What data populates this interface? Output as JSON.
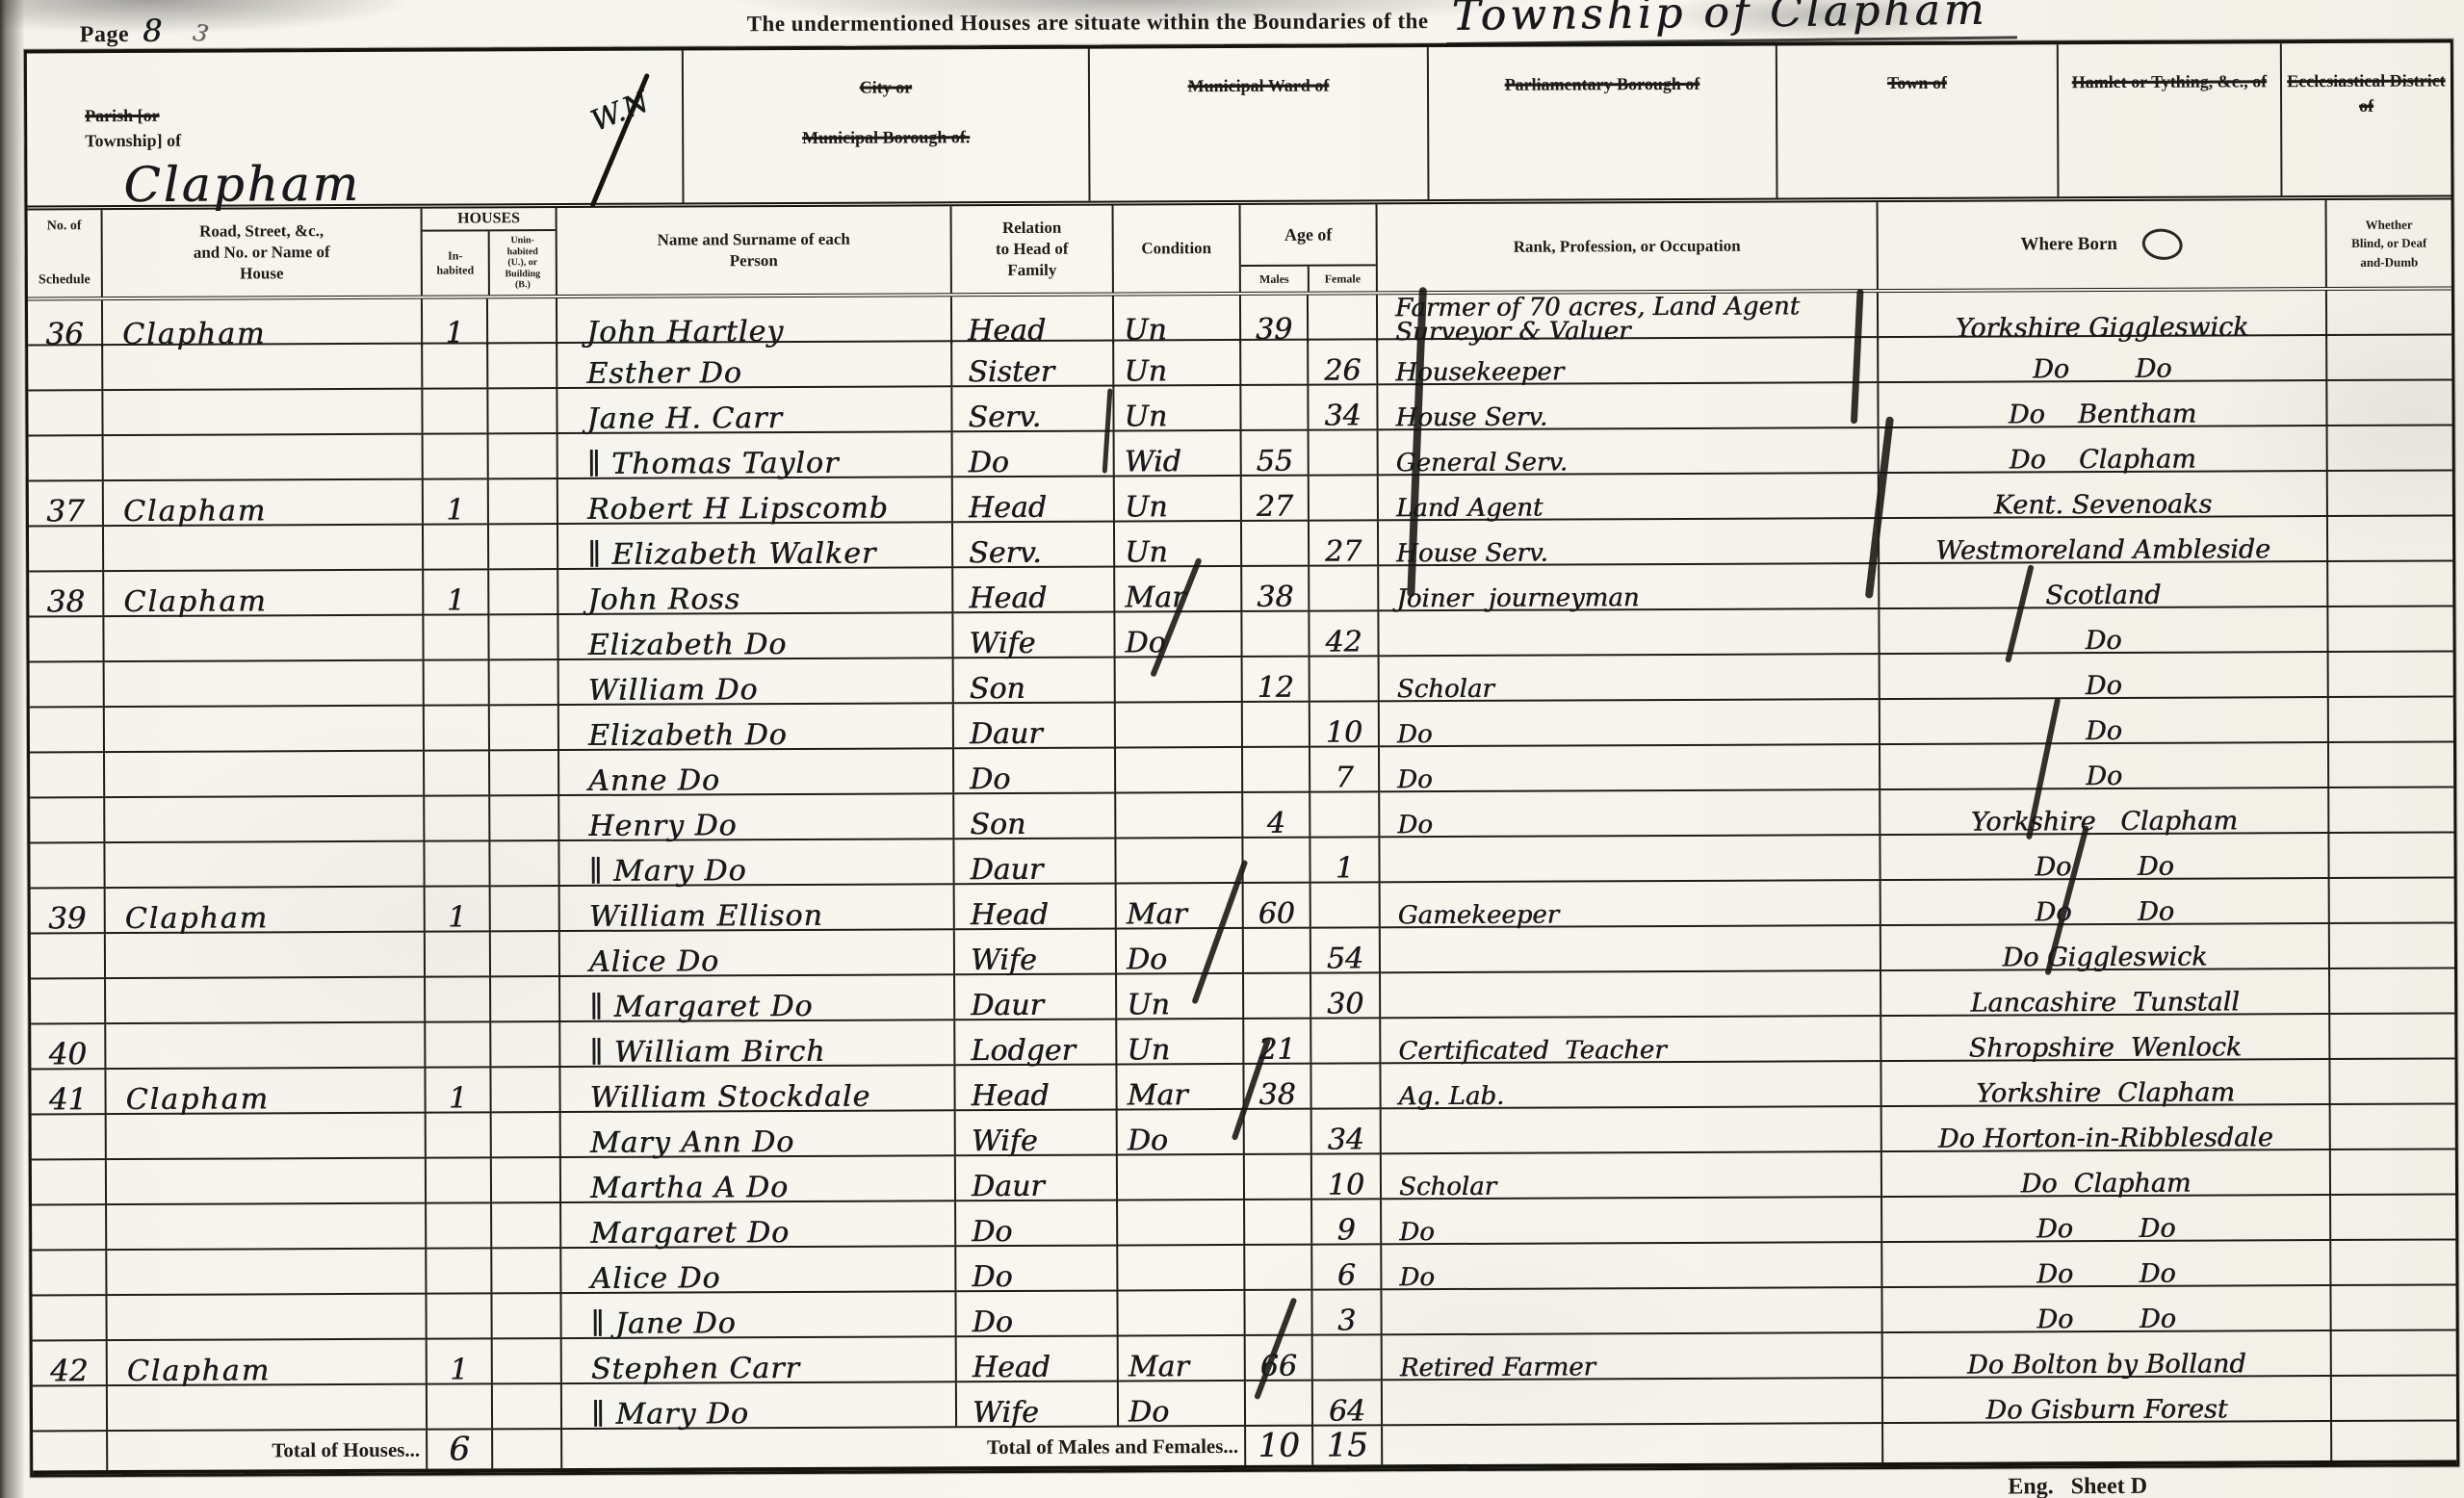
{
  "palette": {
    "paper": "#f7f5ee",
    "ink": "#1d1b18"
  },
  "page_header": {
    "page_label": "Page",
    "page_number": "8",
    "page_scribble": "3",
    "title_printed": "The undermentioned Houses are situate within the Boundaries of the",
    "title_handwritten": "Township of Clapham"
  },
  "district_boxes": [
    {
      "label_struck": "Parish [or",
      "label_plain": "Township] of",
      "value": "Clapham",
      "value_note": "W.N"
    },
    {
      "line1": "City or",
      "line2": "Municipal Borough of."
    },
    {
      "label": "Municipal Ward of"
    },
    {
      "label": "Parliamentary Borough of"
    },
    {
      "label": "Town of"
    },
    {
      "label": "Hamlet or Tything, &c., of"
    },
    {
      "label": "Ecclesiastical District of"
    }
  ],
  "table": {
    "headers": {
      "schedule_top": "No. of",
      "schedule_bottom": "Schedule",
      "road": "Road, Street, &c.,\nand No. or Name of\nHouse",
      "houses_group": "HOUSES",
      "houses_inhabited": "In-\nhabited",
      "houses_uninhabited": "Unin-\nhabited\n(U.), or\nBuilding\n(B.)",
      "name": "Name and Surname of each\nPerson",
      "relation": "Relation\nto Head of\nFamily",
      "condition": "Condition",
      "age_group": "Age of",
      "age_males": "Males",
      "age_females": "Female",
      "occupation": "Rank, Profession, or Occupation",
      "where_born": "Where Born",
      "infirmity": "Whether\nBlind, or Deaf\nand-Dumb"
    },
    "rows": [
      {
        "sch": "36",
        "road": "Clapham",
        "inh": "1",
        "name": "John Hartley",
        "rel": "Head",
        "cond": "Un",
        "m": "39",
        "f": "",
        "occ": "Farmer of 70 acres, Land Agent\nSurveyor & Valuer",
        "born": "Yorkshire Giggleswick"
      },
      {
        "sch": "",
        "road": "",
        "inh": "",
        "name": "Esther Do",
        "rel": "Sister",
        "cond": "Un",
        "m": "",
        "f": "26",
        "occ": "Housekeeper",
        "born": "Do        Do"
      },
      {
        "sch": "",
        "road": "",
        "inh": "",
        "name": "Jane H. Carr",
        "rel": "Serv.",
        "cond": "Un",
        "m": "",
        "f": "34",
        "occ": "House Serv.",
        "born": "Do    Bentham"
      },
      {
        "sch": "",
        "road": "",
        "inh": "",
        "name": "∥ Thomas Taylor",
        "rel": "Do",
        "cond": "Wid",
        "m": "55",
        "f": "",
        "occ": "General Serv.",
        "born": "Do    Clapham"
      },
      {
        "sch": "37",
        "road": "Clapham",
        "inh": "1",
        "name": "Robert H Lipscomb",
        "rel": "Head",
        "cond": "Un",
        "m": "27",
        "f": "",
        "occ": "Land Agent",
        "born": "Kent. Sevenoaks"
      },
      {
        "sch": "",
        "road": "",
        "inh": "",
        "name": "∥ Elizabeth Walker",
        "rel": "Serv.",
        "cond": "Un",
        "m": "",
        "f": "27",
        "occ": "House Serv.",
        "born": "Westmoreland Ambleside"
      },
      {
        "sch": "38",
        "road": "Clapham",
        "inh": "1",
        "name": "John Ross",
        "rel": "Head",
        "cond": "Mar",
        "m": "38",
        "f": "",
        "occ": "Joiner  journeyman",
        "born": "Scotland"
      },
      {
        "sch": "",
        "road": "",
        "inh": "",
        "name": "Elizabeth Do",
        "rel": "Wife",
        "cond": "Do",
        "m": "",
        "f": "42",
        "occ": "",
        "born": "Do"
      },
      {
        "sch": "",
        "road": "",
        "inh": "",
        "name": "William  Do",
        "rel": "Son",
        "cond": "",
        "m": "12",
        "f": "",
        "occ": "Scholar",
        "born": "Do"
      },
      {
        "sch": "",
        "road": "",
        "inh": "",
        "name": "Elizabeth  Do",
        "rel": "Daur",
        "cond": "",
        "m": "",
        "f": "10",
        "occ": "Do",
        "born": "Do"
      },
      {
        "sch": "",
        "road": "",
        "inh": "",
        "name": "Anne   Do",
        "rel": "Do",
        "cond": "",
        "m": "",
        "f": "7",
        "occ": "Do",
        "born": "Do"
      },
      {
        "sch": "",
        "road": "",
        "inh": "",
        "name": "Henry   Do",
        "rel": "Son",
        "cond": "",
        "m": "4",
        "f": "",
        "occ": "Do",
        "born": "Yorkshire   Clapham"
      },
      {
        "sch": "",
        "road": "",
        "inh": "",
        "name": "∥ Mary   Do",
        "rel": "Daur",
        "cond": "",
        "m": "",
        "f": "1",
        "occ": "",
        "born": "Do        Do"
      },
      {
        "sch": "39",
        "road": "Clapham",
        "inh": "1",
        "name": "William  Ellison",
        "rel": "Head",
        "cond": "Mar",
        "m": "60",
        "f": "",
        "occ": "Gamekeeper",
        "born": "Do        Do"
      },
      {
        "sch": "",
        "road": "",
        "inh": "",
        "name": "Alice   Do",
        "rel": "Wife",
        "cond": "Do",
        "m": "",
        "f": "54",
        "occ": "",
        "born": "Do Giggleswick"
      },
      {
        "sch": "",
        "road": "",
        "inh": "",
        "name": "∥ Margaret  Do",
        "rel": "Daur",
        "cond": "Un",
        "m": "",
        "f": "30",
        "occ": "",
        "born": "Lancashire  Tunstall"
      },
      {
        "sch": "40",
        "road": "",
        "inh": "",
        "name": "∥ William  Birch",
        "rel": "Lodger",
        "cond": "Un",
        "m": "21",
        "f": "",
        "occ": "Certificated  Teacher",
        "born": "Shropshire  Wenlock"
      },
      {
        "sch": "41",
        "road": "Clapham",
        "inh": "1",
        "name": "William  Stockdale",
        "rel": "Head",
        "cond": "Mar",
        "m": "38",
        "f": "",
        "occ": "Ag. Lab.",
        "born": "Yorkshire  Clapham"
      },
      {
        "sch": "",
        "road": "",
        "inh": "",
        "name": "Mary Ann  Do",
        "rel": "Wife",
        "cond": "Do",
        "m": "",
        "f": "34",
        "occ": "",
        "born": "Do Horton-in-Ribblesdale"
      },
      {
        "sch": "",
        "road": "",
        "inh": "",
        "name": "Martha A  Do",
        "rel": "Daur",
        "cond": "",
        "m": "",
        "f": "10",
        "occ": "Scholar",
        "born": "Do  Clapham"
      },
      {
        "sch": "",
        "road": "",
        "inh": "",
        "name": "Margaret   Do",
        "rel": "Do",
        "cond": "",
        "m": "",
        "f": "9",
        "occ": "Do",
        "born": "Do        Do"
      },
      {
        "sch": "",
        "road": "",
        "inh": "",
        "name": "Alice    Do",
        "rel": "Do",
        "cond": "",
        "m": "",
        "f": "6",
        "occ": "Do",
        "born": "Do        Do"
      },
      {
        "sch": "",
        "road": "",
        "inh": "",
        "name": "∥ Jane    Do",
        "rel": "Do",
        "cond": "",
        "m": "",
        "f": "3",
        "occ": "",
        "born": "Do        Do"
      },
      {
        "sch": "42",
        "road": "Clapham",
        "inh": "1",
        "name": "Stephen Carr",
        "rel": "Head",
        "cond": "Mar",
        "m": "66",
        "f": "",
        "occ": "Retired Farmer",
        "born": "Do Bolton by Bolland"
      },
      {
        "sch": "",
        "road": "",
        "inh": "",
        "name": "∥ Mary    Do",
        "rel": "Wife",
        "cond": "Do",
        "m": "",
        "f": "64",
        "occ": "",
        "born": "Do Gisburn Forest"
      }
    ]
  },
  "totals": {
    "houses_label": "Total of Houses...",
    "houses_value": "6",
    "males_females_label": "Total of Males and Females...",
    "males_total": "10",
    "females_total": "15"
  },
  "footer": {
    "sheet_label": "Eng.   Sheet D"
  }
}
